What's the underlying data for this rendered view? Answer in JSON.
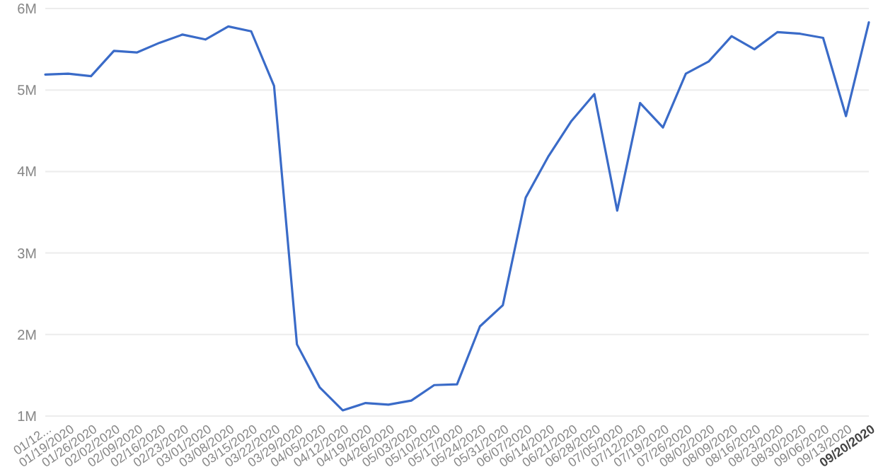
{
  "chart_data": {
    "type": "line",
    "categories": [
      "01/12...",
      "01/19/2020",
      "01/26/2020",
      "02/02/2020",
      "02/09/2020",
      "02/16/2020",
      "02/23/2020",
      "03/01/2020",
      "03/08/2020",
      "03/15/2020",
      "03/22/2020",
      "03/29/2020",
      "04/05/2020",
      "04/12/2020",
      "04/19/2020",
      "04/26/2020",
      "05/03/2020",
      "05/10/2020",
      "05/17/2020",
      "05/24/2020",
      "05/31/2020",
      "06/07/2020",
      "06/14/2020",
      "06/21/2020",
      "06/28/2020",
      "07/05/2020",
      "07/12/2020",
      "07/19/2020",
      "07/26/2020",
      "08/02/2020",
      "08/09/2020",
      "08/16/2020",
      "08/23/2020",
      "08/30/2020",
      "09/06/2020",
      "09/13/2020",
      "09/20/2020"
    ],
    "series": [
      {
        "color": "#3a6bc8",
        "values": [
          5190000,
          5200000,
          5170000,
          5480000,
          5460000,
          5580000,
          5680000,
          5620000,
          5780000,
          5720000,
          5050000,
          1880000,
          1350000,
          1070000,
          1160000,
          1140000,
          1190000,
          1380000,
          1390000,
          2100000,
          2360000,
          3680000,
          4190000,
          4620000,
          4950000,
          3520000,
          4840000,
          4540000,
          5200000,
          5350000,
          5660000,
          5500000,
          5710000,
          5690000,
          5640000,
          4680000,
          5830000
        ]
      }
    ],
    "ylim": [
      1000000,
      6000000
    ],
    "yticks": [
      {
        "value": 1000000,
        "label": "1M"
      },
      {
        "value": 2000000,
        "label": "2M"
      },
      {
        "value": 3000000,
        "label": "3M"
      },
      {
        "value": 4000000,
        "label": "4M"
      },
      {
        "value": 5000000,
        "label": "5M"
      },
      {
        "value": 6000000,
        "label": "6M"
      }
    ],
    "grid": "y",
    "marker": "none",
    "line_style": "solid"
  }
}
